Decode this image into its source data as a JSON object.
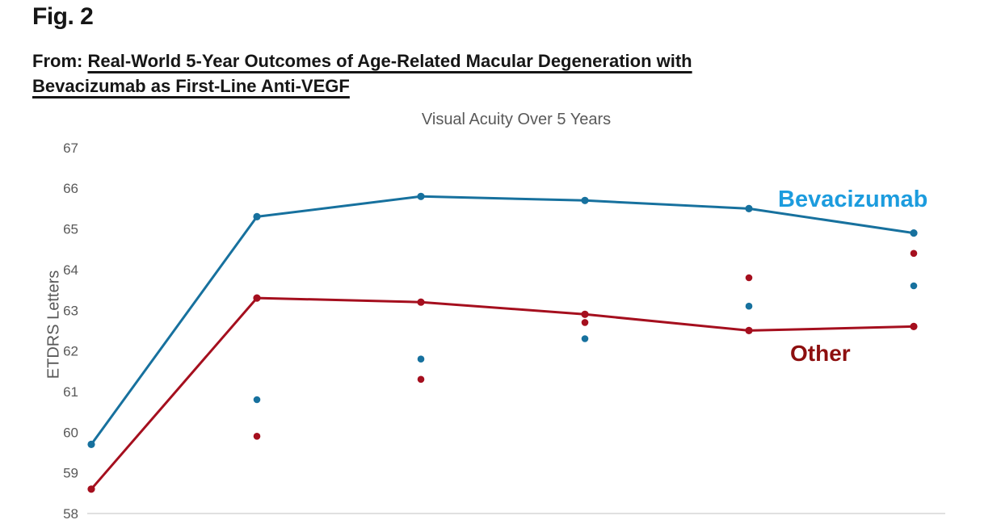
{
  "figure": {
    "label": "Fig. 2",
    "source_prefix": "From:",
    "source_title": "Real-World 5-Year Outcomes of Age-Related Macular Degeneration with Bevacizumab as First-Line Anti-VEGF"
  },
  "chart_data": {
    "type": "line",
    "title": "Visual Acuity Over 5 Years",
    "xlabel": "",
    "ylabel": "ETDRS Letters",
    "ylim": [
      58,
      67
    ],
    "yticks": [
      58,
      59,
      60,
      61,
      62,
      63,
      64,
      65,
      66,
      67
    ],
    "x": [
      0,
      1,
      2,
      3,
      4,
      5
    ],
    "grid": false,
    "baseline_color": "#D6D6D6",
    "axis_text_color": "#595959",
    "legend_position": "inline-right-annotations",
    "series": [
      {
        "name": "Bevacizumab",
        "type": "line+markers",
        "color": "#17719E",
        "label_color": "#1C9CDE",
        "values": [
          59.7,
          65.3,
          65.8,
          65.7,
          65.5,
          64.9
        ]
      },
      {
        "name": "Other",
        "type": "line+markers",
        "color": "#A50F1E",
        "label_color": "#8D0F0F",
        "values": [
          58.6,
          63.3,
          63.2,
          62.9,
          62.5,
          62.6
        ]
      },
      {
        "name": "Bevacizumab scatter points",
        "type": "scatter",
        "color": "#17719E",
        "values": [
          null,
          60.8,
          61.8,
          62.3,
          63.1,
          63.6
        ]
      },
      {
        "name": "Other scatter points",
        "type": "scatter",
        "color": "#A50F1E",
        "values": [
          null,
          59.9,
          61.3,
          62.7,
          63.8,
          64.4
        ]
      }
    ]
  }
}
